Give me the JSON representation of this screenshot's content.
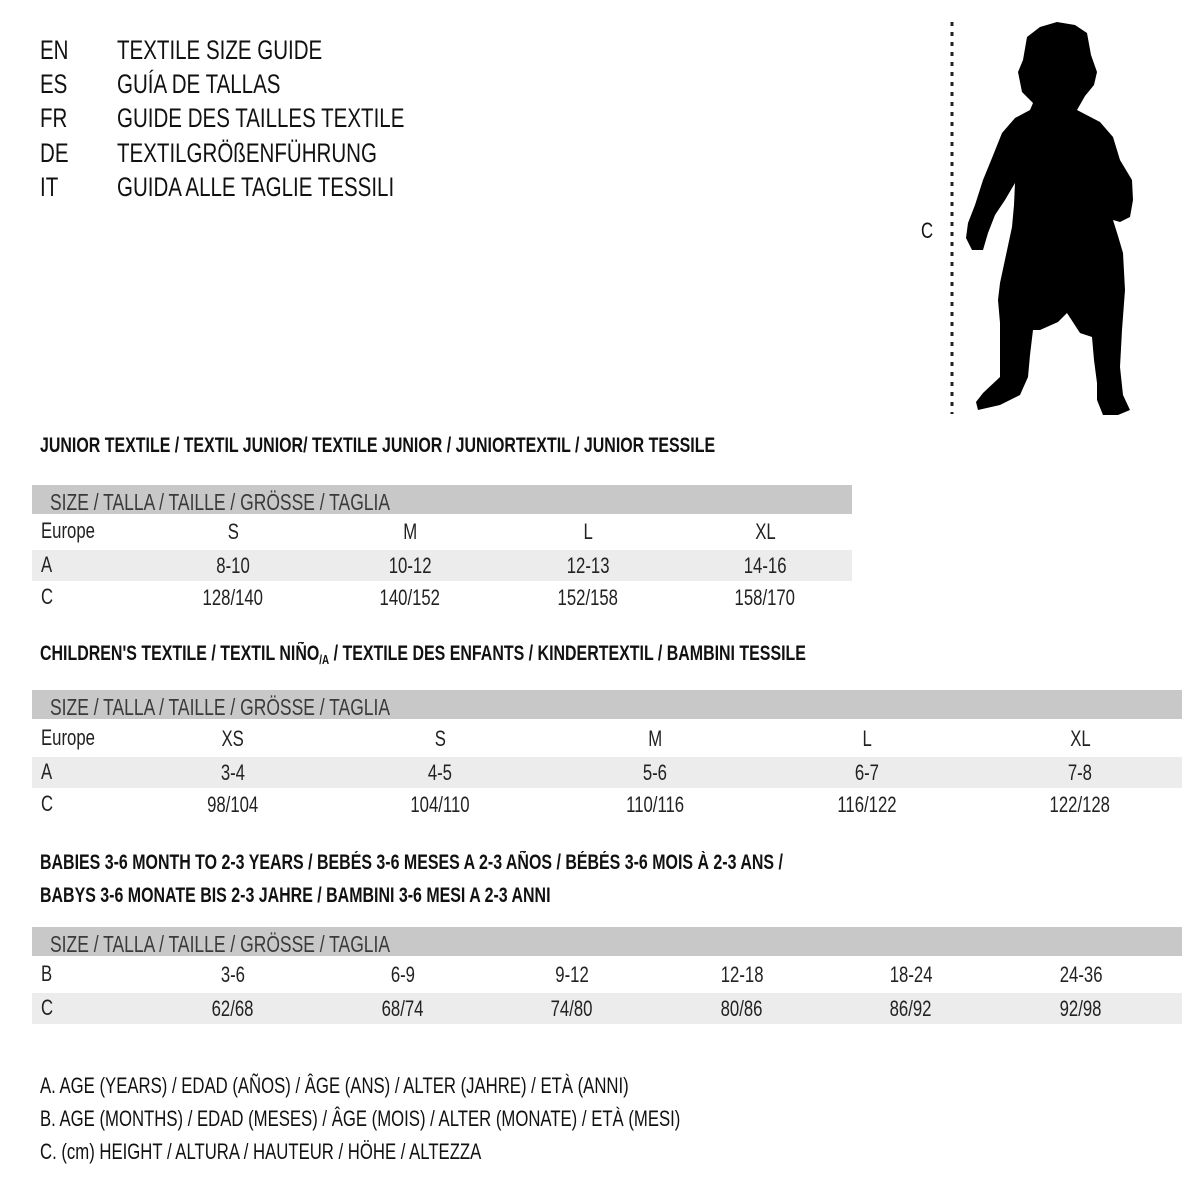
{
  "header": {
    "lines": [
      {
        "code": "EN",
        "text": "TEXTILE SIZE GUIDE"
      },
      {
        "code": "ES",
        "text": "GUÍA DE TALLAS"
      },
      {
        "code": "FR",
        "text": "GUIDE DES TAILLES TEXTILE"
      },
      {
        "code": "DE",
        "text": "TEXTILGRÖßENFÜHRUNG"
      },
      {
        "code": "IT",
        "text": "GUIDA ALLE TAGLIE TESSILI"
      }
    ]
  },
  "figure": {
    "measure_label": "C",
    "icon": "child-silhouette"
  },
  "junior": {
    "title": "JUNIOR TEXTILE / TEXTIL JUNIOR/ TEXTILE JUNIOR / JUNIORTEXTIL / JUNIOR TESSILE",
    "size_header": "SIZE / TALLA / TAILLE / GRÖSSE / TAGLIA",
    "rows": [
      {
        "label": "Europe",
        "values": [
          "S",
          "M",
          "L",
          "XL"
        ]
      },
      {
        "label": "A",
        "values": [
          "8-10",
          "10-12",
          "12-13",
          "14-16"
        ]
      },
      {
        "label": "C",
        "values": [
          "128/140",
          "140/152",
          "152/158",
          "158/170"
        ]
      }
    ]
  },
  "children": {
    "title_part1": "CHILDREN'S TEXTILE / TEXTIL NIÑO",
    "title_sub": "/A",
    "title_part2": " / TEXTILE DES ENFANTS / KINDERTEXTIL / BAMBINI TESSILE",
    "size_header": "SIZE / TALLA / TAILLE / GRÖSSE / TAGLIA",
    "rows": [
      {
        "label": "Europe",
        "values": [
          "XS",
          "S",
          "M",
          "L",
          "XL"
        ]
      },
      {
        "label": "A",
        "values": [
          "3-4",
          "4-5",
          "5-6",
          "6-7",
          "7-8"
        ]
      },
      {
        "label": "C",
        "values": [
          "98/104",
          "104/110",
          "110/116",
          "116/122",
          "122/128"
        ]
      }
    ]
  },
  "babies": {
    "title_line1": "BABIES 3-6 MONTH TO 2-3 YEARS / BEBÉS 3-6 MESES A 2-3 AÑOS / BÉBÉS 3-6 MOIS À 2-3 ANS /",
    "title_line2": "BABYS 3-6 MONATE BIS 2-3 JAHRE / BAMBINI 3-6 MESI A 2-3 ANNI",
    "size_header": "SIZE / TALLA / TAILLE / GRÖSSE / TAGLIA",
    "rows": [
      {
        "label": "B",
        "values": [
          "3-6",
          "6-9",
          "9-12",
          "12-18",
          "18-24",
          "24-36"
        ]
      },
      {
        "label": "C",
        "values": [
          "62/68",
          "68/74",
          "74/80",
          "80/86",
          "86/92",
          "92/98"
        ]
      }
    ]
  },
  "legend": [
    "A. AGE (YEARS) / EDAD (AÑOS) / ÂGE (ANS) / ALTER (JAHRE) / ETÀ (ANNI)",
    "B. AGE (MONTHS) / EDAD (MESES) / ÂGE (MOIS) / ALTER (MONATE) / ETÀ (MESI)",
    "C. (cm) HEIGHT / ALTURA / HAUTEUR / HÖHE / ALTEZZA"
  ],
  "colors": {
    "header_bar": "#c8c8c8",
    "shaded_row": "#ececec",
    "text": "#111111"
  }
}
